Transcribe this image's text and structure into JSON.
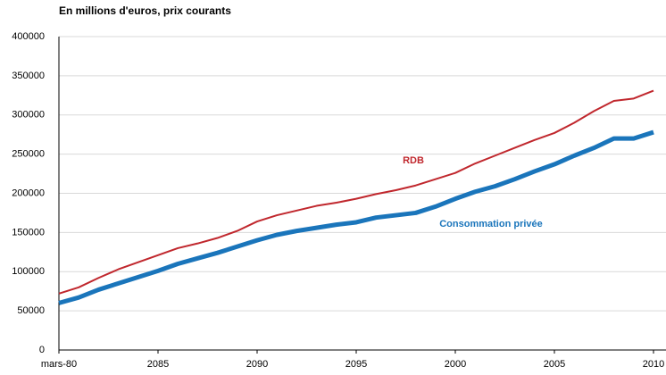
{
  "chart_data": {
    "type": "line",
    "title": "En millions d'euros, prix courants",
    "categories": [
      "mars-80",
      null,
      null,
      null,
      null,
      "2085",
      null,
      null,
      null,
      null,
      "2090",
      null,
      null,
      null,
      null,
      "2095",
      null,
      null,
      null,
      null,
      "2000",
      null,
      null,
      null,
      null,
      "2005",
      null,
      null,
      null,
      null,
      "2010"
    ],
    "series": [
      {
        "name": "RDB",
        "color": "#c0272d",
        "values": [
          72000,
          80000,
          92000,
          103000,
          112000,
          121000,
          130000,
          136000,
          143000,
          152000,
          164000,
          172000,
          178000,
          184000,
          188000,
          193000,
          199000,
          204000,
          210000,
          218000,
          226000,
          238000,
          248000,
          258000,
          268000,
          277000,
          290000,
          305000,
          318000,
          321000,
          331000
        ]
      },
      {
        "name": "Consommation privée",
        "color": "#1a75bb",
        "values": [
          60000,
          67000,
          77000,
          85000,
          93000,
          101000,
          110000,
          117000,
          124000,
          132000,
          140000,
          147000,
          152000,
          156000,
          160000,
          163000,
          169000,
          172000,
          175000,
          183000,
          193000,
          202000,
          209000,
          218000,
          228000,
          237000,
          248000,
          258000,
          270000,
          270000,
          278000
        ]
      }
    ],
    "ylim": [
      0,
      400000
    ],
    "yticks": [
      0,
      50000,
      100000,
      150000,
      200000,
      250000,
      300000,
      350000,
      400000
    ],
    "grid": true
  }
}
